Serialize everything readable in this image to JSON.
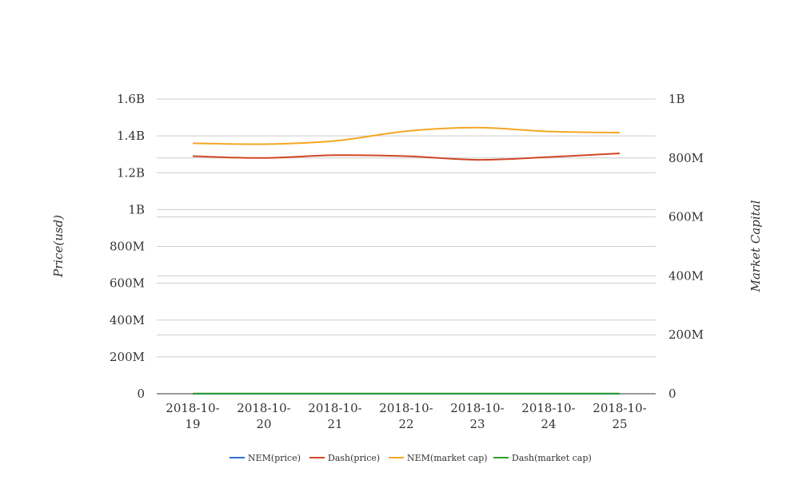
{
  "chart_data": {
    "type": "line",
    "title": "",
    "categories": [
      "2018-10-19",
      "2018-10-20",
      "2018-10-21",
      "2018-10-22",
      "2018-10-23",
      "2018-10-24",
      "2018-10-25"
    ],
    "category_label_lines": [
      [
        "2018-10-",
        "19"
      ],
      [
        "2018-10-",
        "20"
      ],
      [
        "2018-10-",
        "21"
      ],
      [
        "2018-10-",
        "22"
      ],
      [
        "2018-10-",
        "23"
      ],
      [
        "2018-10-",
        "24"
      ],
      [
        "2018-10-",
        "25"
      ]
    ],
    "ylabel_left": "Price(usd)",
    "ylabel_right": "Market Capital",
    "y_left": {
      "min": 0,
      "max": 1600000000,
      "ticks": [
        0,
        200000000,
        400000000,
        600000000,
        800000000,
        1000000000,
        1200000000,
        1400000000,
        1600000000
      ],
      "tick_labels": [
        "0",
        "200M",
        "400M",
        "600M",
        "800M",
        "1B",
        "1.2B",
        "1.4B",
        "1.6B"
      ]
    },
    "y_right": {
      "min": 0,
      "max": 1000000000,
      "ticks": [
        0,
        200000000,
        400000000,
        600000000,
        800000000,
        1000000000
      ],
      "tick_labels": [
        "0",
        "200M",
        "400M",
        "600M",
        "800M",
        "1B"
      ]
    },
    "grid": true,
    "legend_position": "bottom",
    "series": [
      {
        "name": "NEM(price)",
        "axis": "left",
        "color": "#2f6fd0",
        "values": [
          0.1,
          0.1,
          0.1,
          0.1,
          0.1,
          0.1,
          0.1
        ]
      },
      {
        "name": "Dash(price)",
        "axis": "left",
        "color": "#d14626",
        "values": [
          1290000000,
          1280000000,
          1295000000,
          1290000000,
          1270000000,
          1285000000,
          1305000000
        ]
      },
      {
        "name": "NEM(market cap)",
        "axis": "right",
        "color": "#f5a623",
        "values": [
          850000000,
          847000000,
          858000000,
          891000000,
          903000000,
          890000000,
          886000000
        ]
      },
      {
        "name": "Dash(market cap)",
        "axis": "right",
        "color": "#2ca02c",
        "values": [
          600000,
          600000,
          600000,
          600000,
          600000,
          600000,
          600000
        ]
      }
    ]
  }
}
